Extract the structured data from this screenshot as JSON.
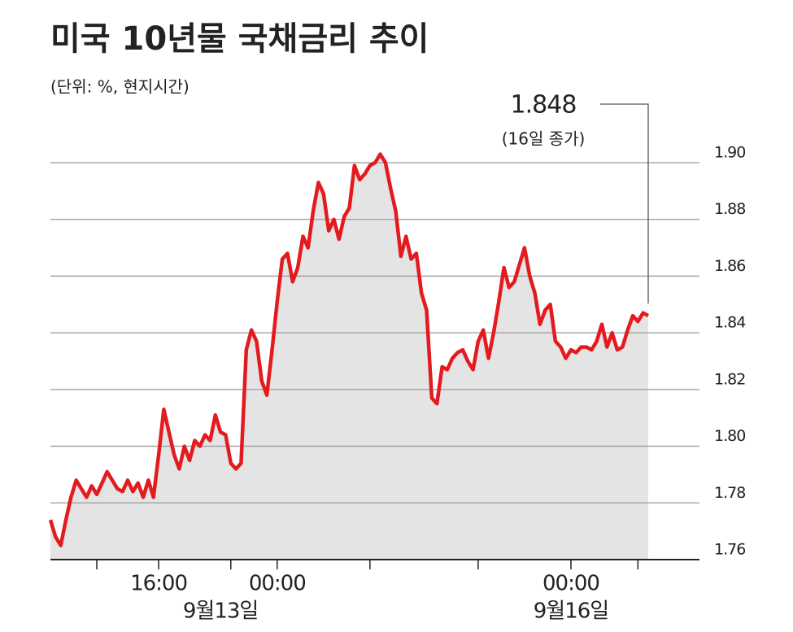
{
  "chart_data": {
    "type": "area-line",
    "title": "미국 10년물 국채금리 추이",
    "subtitle": "(단위: %, 현지시간)",
    "color": "#e31b1f",
    "fill": "#e4e4e4",
    "values": [
      1.774,
      1.768,
      1.765,
      1.774,
      1.782,
      1.788,
      1.785,
      1.782,
      1.786,
      1.783,
      1.787,
      1.791,
      1.788,
      1.785,
      1.784,
      1.788,
      1.784,
      1.787,
      1.782,
      1.788,
      1.782,
      1.797,
      1.813,
      1.805,
      1.797,
      1.792,
      1.8,
      1.795,
      1.802,
      1.8,
      1.804,
      1.802,
      1.811,
      1.805,
      1.804,
      1.794,
      1.792,
      1.794,
      1.834,
      1.841,
      1.837,
      1.823,
      1.818,
      1.834,
      1.851,
      1.866,
      1.868,
      1.858,
      1.863,
      1.874,
      1.87,
      1.883,
      1.893,
      1.889,
      1.876,
      1.88,
      1.873,
      1.881,
      1.884,
      1.899,
      1.894,
      1.896,
      1.899,
      1.9,
      1.903,
      1.9,
      1.891,
      1.883,
      1.867,
      1.874,
      1.866,
      1.868,
      1.854,
      1.848,
      1.817,
      1.815,
      1.828,
      1.827,
      1.831,
      1.833,
      1.834,
      1.83,
      1.827,
      1.837,
      1.841,
      1.831,
      1.84,
      1.851,
      1.863,
      1.856,
      1.858,
      1.864,
      1.87,
      1.86,
      1.854,
      1.843,
      1.848,
      1.85,
      1.837,
      1.835,
      1.831,
      1.834,
      1.833,
      1.835,
      1.835,
      1.834,
      1.837,
      1.843,
      1.835,
      1.84,
      1.834,
      1.835,
      1.841,
      1.846,
      1.844,
      1.847,
      1.846
    ],
    "ylim": [
      1.76,
      1.9
    ],
    "yticks": [
      1.76,
      1.78,
      {
        "value": 1.8,
        "label": "1.80"
      },
      1.82,
      1.84,
      1.86,
      1.88,
      {
        "value": 1.9,
        "label": "1.90"
      }
    ],
    "xticks": [
      {
        "value": 21,
        "label": "16:00"
      },
      {
        "value": 44,
        "label": "00:00"
      },
      {
        "value": 101,
        "label": "00:00"
      }
    ],
    "minor_xticks": [
      9,
      35,
      62,
      83,
      114
    ],
    "date_labels": [
      {
        "value": 33,
        "label": "9월13일"
      },
      {
        "value": 101,
        "label": "9월16일"
      }
    ],
    "grid": true,
    "annotation": {
      "value": 1.848,
      "label": "1.848",
      "note": "(16일 종가)"
    }
  }
}
